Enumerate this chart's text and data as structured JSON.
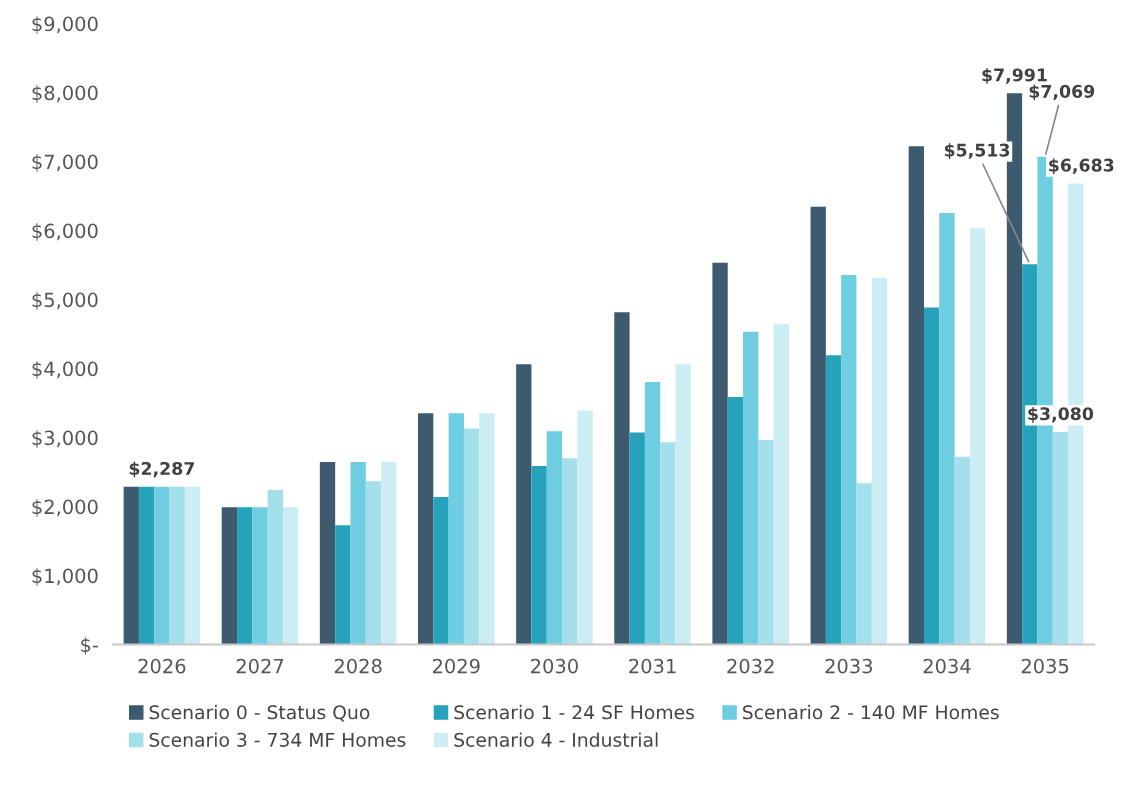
{
  "chart_data": {
    "type": "bar",
    "categories": [
      "2026",
      "2027",
      "2028",
      "2029",
      "2030",
      "2031",
      "2032",
      "2033",
      "2034",
      "2035"
    ],
    "series": [
      {
        "name": "Scenario 0 - Status Quo",
        "color": "#3d5a6e",
        "values": [
          2287,
          1990,
          2645,
          3353,
          4061,
          4817,
          5533,
          6346,
          7221,
          7991
        ],
        "value_labels": [
          null,
          null,
          null,
          null,
          null,
          null,
          null,
          null,
          null,
          "$7,991"
        ]
      },
      {
        "name": "Scenario 1 - 24 SF Homes",
        "color": "#26a3bb",
        "values": [
          2287,
          1990,
          1730,
          2137,
          2587,
          3073,
          3586,
          4193,
          4884,
          5513
        ],
        "value_labels": [
          null,
          null,
          null,
          null,
          null,
          null,
          null,
          null,
          null,
          "$5,513"
        ]
      },
      {
        "name": "Scenario 2 - 140 MF Homes",
        "color": "#6ecde0",
        "values": [
          2287,
          1990,
          2645,
          3353,
          3092,
          3804,
          4535,
          5355,
          6253,
          7069
        ],
        "value_labels": [
          "$2,287",
          null,
          null,
          null,
          null,
          null,
          null,
          null,
          null,
          "$7,069"
        ]
      },
      {
        "name": "Scenario 3 - 734 MF Homes",
        "color": "#a3e0ec",
        "values": [
          2287,
          2238,
          2365,
          3131,
          2699,
          2932,
          2965,
          2339,
          2721,
          3080
        ],
        "value_labels": [
          null,
          null,
          null,
          null,
          null,
          null,
          null,
          null,
          null,
          "$3,080"
        ]
      },
      {
        "name": "Scenario 4 - Industrial",
        "color": "#cdedf4",
        "values": [
          2287,
          1990,
          2645,
          3353,
          3392,
          4061,
          4651,
          5311,
          6033,
          6683
        ],
        "value_labels": [
          null,
          null,
          null,
          null,
          null,
          null,
          null,
          null,
          null,
          "$6,683"
        ]
      }
    ],
    "ylim": [
      0,
      9000
    ],
    "yticks": [
      {
        "value": 0,
        "label": "$-"
      },
      {
        "value": 1000,
        "label": "$1,000"
      },
      {
        "value": 2000,
        "label": "$2,000"
      },
      {
        "value": 3000,
        "label": "$3,000"
      },
      {
        "value": 4000,
        "label": "$4,000"
      },
      {
        "value": 5000,
        "label": "$5,000"
      },
      {
        "value": 6000,
        "label": "$6,000"
      },
      {
        "value": 7000,
        "label": "$7,000"
      },
      {
        "value": 8000,
        "label": "$8,000"
      },
      {
        "value": 9000,
        "label": "$9,000"
      }
    ],
    "grid": false,
    "legend": "bottom"
  }
}
